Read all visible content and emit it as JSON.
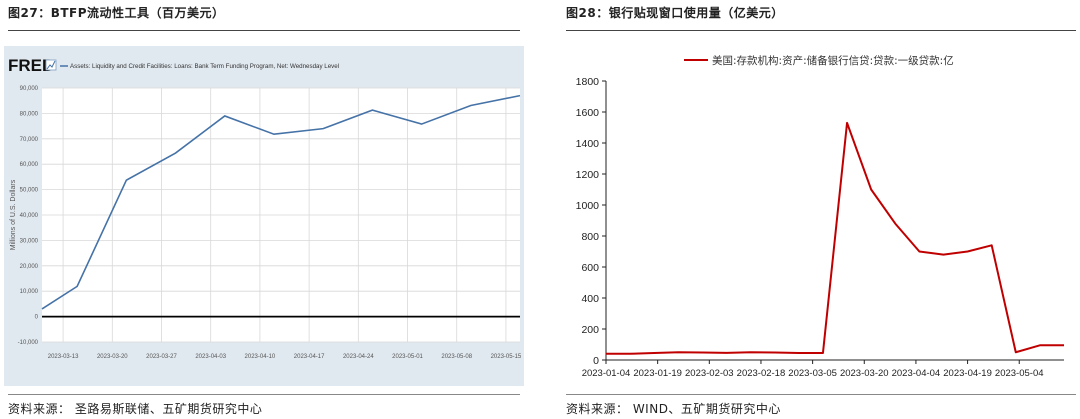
{
  "left": {
    "title": "图27：BTFP流动性工具（百万美元）",
    "source": "资料来源：  圣路易斯联储、五矿期货研究中心",
    "fred_logo": "FRED",
    "chart_data": {
      "type": "line",
      "title": "Assets: Liquidity and Credit Facilities: Loans: Bank Term Funding Program, Net: Wednesday Level",
      "ylabel": "Millions of U.S. Dollars",
      "xlabel": "",
      "ylim": [
        -10000,
        90000
      ],
      "yticks": [
        "-10,000",
        "0",
        "10,000",
        "20,000",
        "30,000",
        "40,000",
        "50,000",
        "60,000",
        "70,000",
        "80,000",
        "90,000"
      ],
      "x": [
        "2023-03-15",
        "2023-03-22",
        "2023-03-29",
        "2023-04-05",
        "2023-04-12",
        "2023-04-19",
        "2023-04-26",
        "2023-05-03",
        "2023-05-10",
        "2023-05-17"
      ],
      "xticks": [
        "2023-03-13",
        "2023-03-20",
        "2023-03-27",
        "2023-04-03",
        "2023-04-10",
        "2023-04-17",
        "2023-04-24",
        "2023-05-01",
        "2023-05-08",
        "2023-05-15"
      ],
      "series": [
        {
          "values": [
            11900,
            53700,
            64400,
            79000,
            71800,
            74000,
            81300,
            75800,
            83100,
            87000
          ],
          "color": "#4572a7"
        }
      ],
      "start_value": 3000,
      "grid": true,
      "background": "#e1e9f0"
    }
  },
  "right": {
    "title": "图28：银行贴现窗口使用量（亿美元）",
    "source": "资料来源：  WIND、五矿期货研究中心",
    "chart_data": {
      "type": "line",
      "title": "",
      "xlabel": "",
      "ylabel": "",
      "ylim": [
        0,
        1800
      ],
      "yticks": [
        "0",
        "200",
        "400",
        "600",
        "800",
        "1000",
        "1200",
        "1400",
        "1600",
        "1800"
      ],
      "xticks": [
        "2023-01-04",
        "2023-01-19",
        "2023-02-03",
        "2023-02-18",
        "2023-03-05",
        "2023-03-20",
        "2023-04-04",
        "2023-04-19",
        "2023-05-04"
      ],
      "series": [
        {
          "name": "美国:存款机构:资产:储备银行信贷:贷款:一级贷款:亿",
          "color": "#c00000",
          "x": [
            "2023-01-04",
            "2023-01-11",
            "2023-01-18",
            "2023-01-25",
            "2023-02-01",
            "2023-02-08",
            "2023-02-15",
            "2023-02-22",
            "2023-03-01",
            "2023-03-08",
            "2023-03-15",
            "2023-03-22",
            "2023-03-29",
            "2023-04-05",
            "2023-04-12",
            "2023-04-19",
            "2023-04-26",
            "2023-05-03",
            "2023-05-10",
            "2023-05-17"
          ],
          "values": [
            40,
            40,
            45,
            50,
            48,
            46,
            50,
            48,
            45,
            45,
            1530,
            1100,
            880,
            700,
            680,
            700,
            740,
            50,
            95,
            95
          ]
        }
      ],
      "grid": false,
      "legend": "top"
    }
  }
}
